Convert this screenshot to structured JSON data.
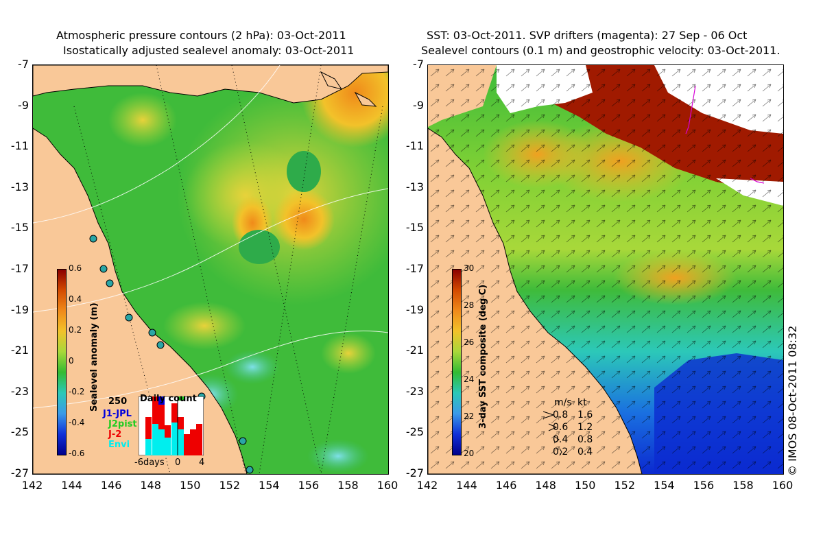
{
  "left_panel": {
    "title_line1": "Atmospheric pressure contours (2 hPa): 03-Oct-2011",
    "title_line2": "Isostatically adjusted sealevel anomaly: 03-Oct-2011",
    "colorbar": {
      "title": "Sealevel anomaly (m)",
      "ticks": [
        "0.6",
        "0.4",
        "0.2",
        "0",
        "-0.2",
        "-0.4",
        "-0.6"
      ],
      "range": [
        -0.6,
        0.6
      ]
    },
    "histogram": {
      "count_label": "250",
      "title": "Daily count",
      "legend": [
        {
          "label": "J1-JPL",
          "color": "#0000dd"
        },
        {
          "label": "J2pist",
          "color": "#22cc22"
        },
        {
          "label": "J-2",
          "color": "#ee0000"
        },
        {
          "label": "Envi",
          "color": "#00eeee"
        }
      ],
      "x_labels": [
        "-6days",
        "0",
        "4"
      ]
    }
  },
  "right_panel": {
    "title_line1": "SST: 03-Oct-2011. SVP drifters (magenta): 27 Sep - 06 Oct",
    "title_line2": "Sealevel contours (0.1 m) and geostrophic velocity: 03-Oct-2011.",
    "colorbar": {
      "title": "3-day SST composite (deg C)",
      "ticks": [
        "30",
        "28",
        "26",
        "24",
        "22",
        "20"
      ],
      "range": [
        20,
        30
      ]
    },
    "velocity_legend": {
      "header_ms": "m/s",
      "header_kt": "kt",
      "rows": [
        {
          "ms": "0.8",
          "kt": "1.6"
        },
        {
          "ms": "0.6",
          "kt": "1.2"
        },
        {
          "ms": "0.4",
          "kt": "0.8"
        },
        {
          "ms": "0.2",
          "kt": "0.4"
        }
      ]
    },
    "credit": "© IMOS 08-Oct-2011 08:32"
  },
  "axes": {
    "y_ticks": [
      "-7",
      "-9",
      "-11",
      "-13",
      "-15",
      "-17",
      "-19",
      "-21",
      "-23",
      "-25",
      "-27"
    ],
    "x_ticks": [
      "142",
      "144",
      "146",
      "148",
      "150",
      "152",
      "154",
      "156",
      "158",
      "160"
    ]
  },
  "colors": {
    "land": "#f9c898",
    "sla_low": "#00008b",
    "sla_zero": "#33bb33",
    "sla_high": "#8b0000",
    "sst_warm": "#a01a00",
    "sst_cool": "#0022cc"
  }
}
